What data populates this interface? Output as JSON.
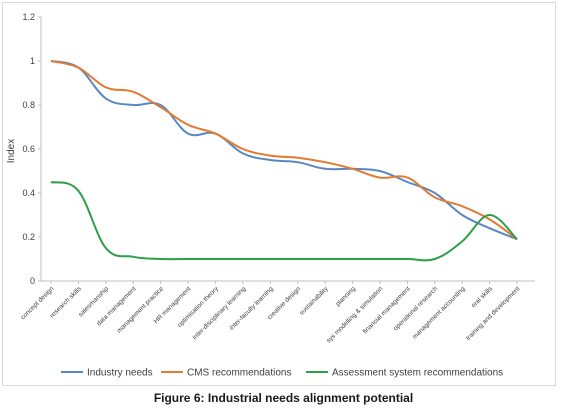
{
  "caption": "Figure 6: Industrial needs alignment potential",
  "chart_data": {
    "type": "line",
    "ylabel": "Index",
    "ylim": [
      0,
      1.2
    ],
    "yticks": [
      "0",
      "0.2",
      "0.4",
      "0.6",
      "0.8",
      "1",
      "1.2"
    ],
    "grid": false,
    "legend_position": "bottom",
    "categories": [
      "concept design",
      "research skills",
      "salesmanship",
      "data management",
      "management practice",
      "HR management",
      "optimisation theory",
      "inter-disciplinary learning",
      "inter-faculty learning",
      "creative design",
      "sustainability",
      "planning",
      "sys modelling & simulation",
      "financial management",
      "operational research",
      "management accounting",
      "oral skills",
      "training and development"
    ],
    "series": [
      {
        "name": "Industry needs",
        "color": "#5b87c1",
        "values": [
          1.0,
          0.97,
          0.83,
          0.8,
          0.8,
          0.67,
          0.67,
          0.58,
          0.55,
          0.54,
          0.51,
          0.51,
          0.5,
          0.45,
          0.4,
          0.3,
          0.24,
          0.19
        ]
      },
      {
        "name": "CMS recommendations",
        "color": "#e07b34",
        "values": [
          1.0,
          0.97,
          0.88,
          0.86,
          0.79,
          0.71,
          0.67,
          0.6,
          0.57,
          0.56,
          0.54,
          0.51,
          0.47,
          0.47,
          0.38,
          0.34,
          0.28,
          0.19
        ]
      },
      {
        "name": "Assessment system recommendations",
        "color": "#2e9e48",
        "values": [
          0.45,
          0.41,
          0.15,
          0.11,
          0.1,
          0.1,
          0.1,
          0.1,
          0.1,
          0.1,
          0.1,
          0.1,
          0.1,
          0.1,
          0.1,
          0.18,
          0.3,
          0.19
        ]
      }
    ]
  }
}
